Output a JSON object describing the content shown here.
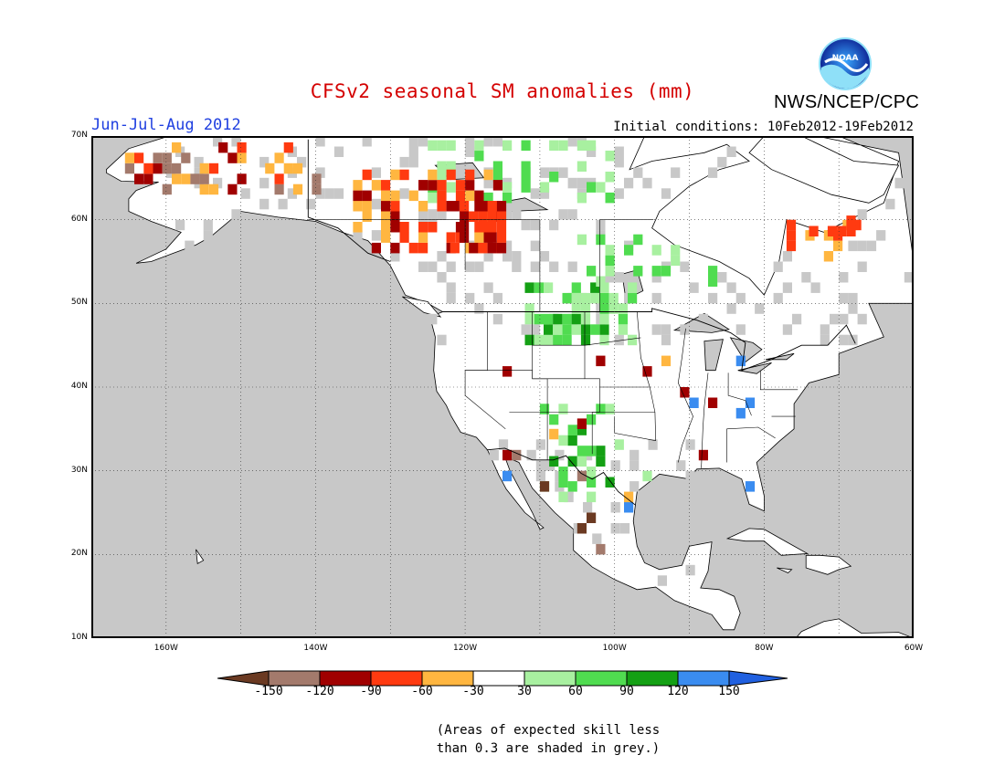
{
  "title": "CFSv2 seasonal SM anomalies (mm)",
  "period": "Jun-Jul-Aug 2012",
  "initial_conditions": "Initial conditions: 10Feb2012-19Feb2012",
  "agency": "NWS/NCEP/CPC",
  "logo_text": "NOAA",
  "map": {
    "lon_range": [
      -170,
      -60
    ],
    "lat_range": [
      10,
      70
    ],
    "lat_labels": [
      "70N",
      "60N",
      "50N",
      "40N",
      "30N",
      "20N",
      "10N"
    ],
    "lon_labels": [
      "160W",
      "140W",
      "120W",
      "100W",
      "80W",
      "60W"
    ],
    "ocean_color": "#c8c8c8",
    "land_color": "#ffffff",
    "grid": true
  },
  "colorbar": {
    "labels": [
      "-150",
      "-120",
      "-90",
      "-60",
      "-30",
      "30",
      "60",
      "90",
      "120",
      "150"
    ],
    "colors": [
      "#6b3a22",
      "#a37a6c",
      "#a00000",
      "#ff3a10",
      "#ffb640",
      "#ffffff",
      "#a8f0a0",
      "#50dc50",
      "#14a014",
      "#3a8cf0",
      "#2060e0"
    ]
  },
  "note": {
    "line1": "(Areas of expected skill less",
    "line2": "than 0.3 are shaded in grey.)"
  }
}
